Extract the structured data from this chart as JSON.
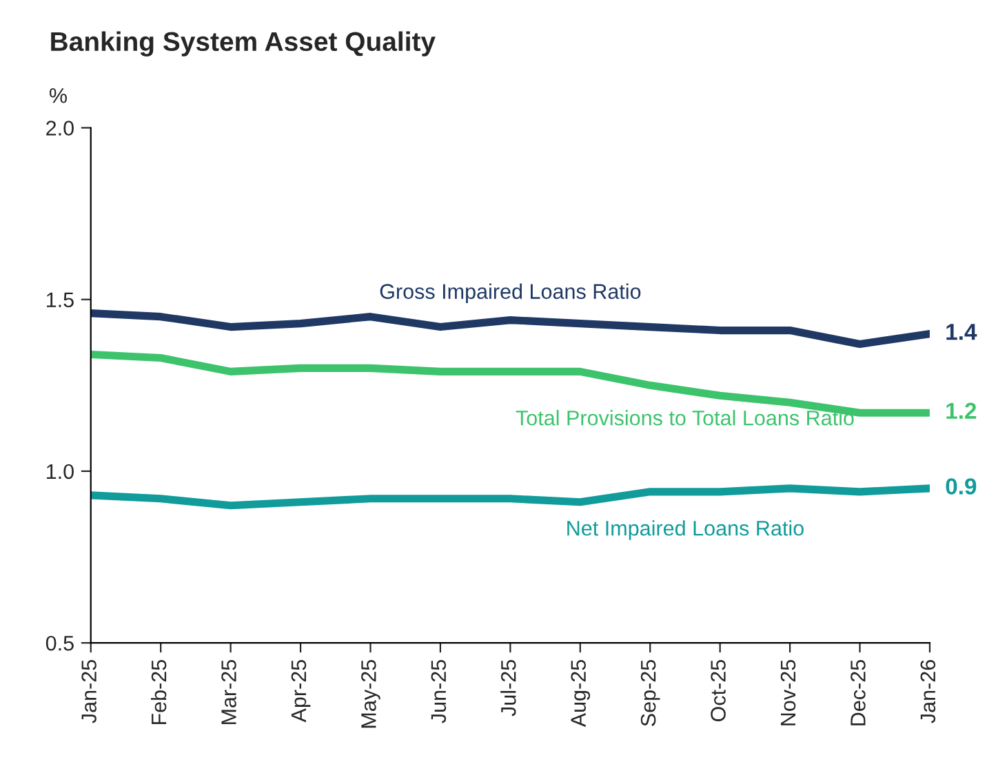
{
  "chart_data": {
    "type": "line",
    "title": "Banking System Asset Quality",
    "ylabel": "%",
    "categories": [
      "Jan-25",
      "Feb-25",
      "Mar-25",
      "Apr-25",
      "May-25",
      "Jun-25",
      "Jul-25",
      "Aug-25",
      "Sep-25",
      "Oct-25",
      "Nov-25",
      "Dec-25",
      "Jan-26"
    ],
    "series": [
      {
        "name": "Gross Impaired Loans Ratio",
        "color": "#1f3864",
        "values": [
          1.46,
          1.45,
          1.42,
          1.43,
          1.45,
          1.42,
          1.44,
          1.43,
          1.42,
          1.41,
          1.41,
          1.37,
          1.4
        ],
        "value_labels": [
          null,
          null,
          null,
          null,
          null,
          null,
          null,
          null,
          null,
          null,
          null,
          null,
          "1.4"
        ]
      },
      {
        "name": "Total Provisions to Total Loans Ratio",
        "color": "#3cc36c",
        "values": [
          1.34,
          1.33,
          1.29,
          1.3,
          1.3,
          1.29,
          1.29,
          1.29,
          1.25,
          1.22,
          1.2,
          1.17,
          1.17
        ],
        "value_labels": [
          null,
          null,
          null,
          null,
          null,
          null,
          null,
          null,
          null,
          null,
          null,
          null,
          "1.2"
        ]
      },
      {
        "name": "Net Impaired Loans Ratio",
        "color": "#119b9b",
        "values": [
          0.93,
          0.92,
          0.9,
          0.91,
          0.92,
          0.92,
          0.92,
          0.91,
          0.94,
          0.94,
          0.95,
          0.94,
          0.95
        ],
        "value_labels": [
          null,
          null,
          null,
          null,
          null,
          null,
          null,
          null,
          null,
          null,
          null,
          null,
          "0.9"
        ]
      }
    ],
    "ylim": [
      0.5,
      2.0
    ],
    "yticks": [
      {
        "value": 0.5,
        "label": "0.5"
      },
      {
        "value": 1.0,
        "label": "1.0"
      },
      {
        "value": 1.5,
        "label": "1.5"
      },
      {
        "value": 2.0,
        "label": "2.0"
      }
    ],
    "grid": false,
    "legend": false,
    "marker": "none",
    "line_style": "solid"
  }
}
